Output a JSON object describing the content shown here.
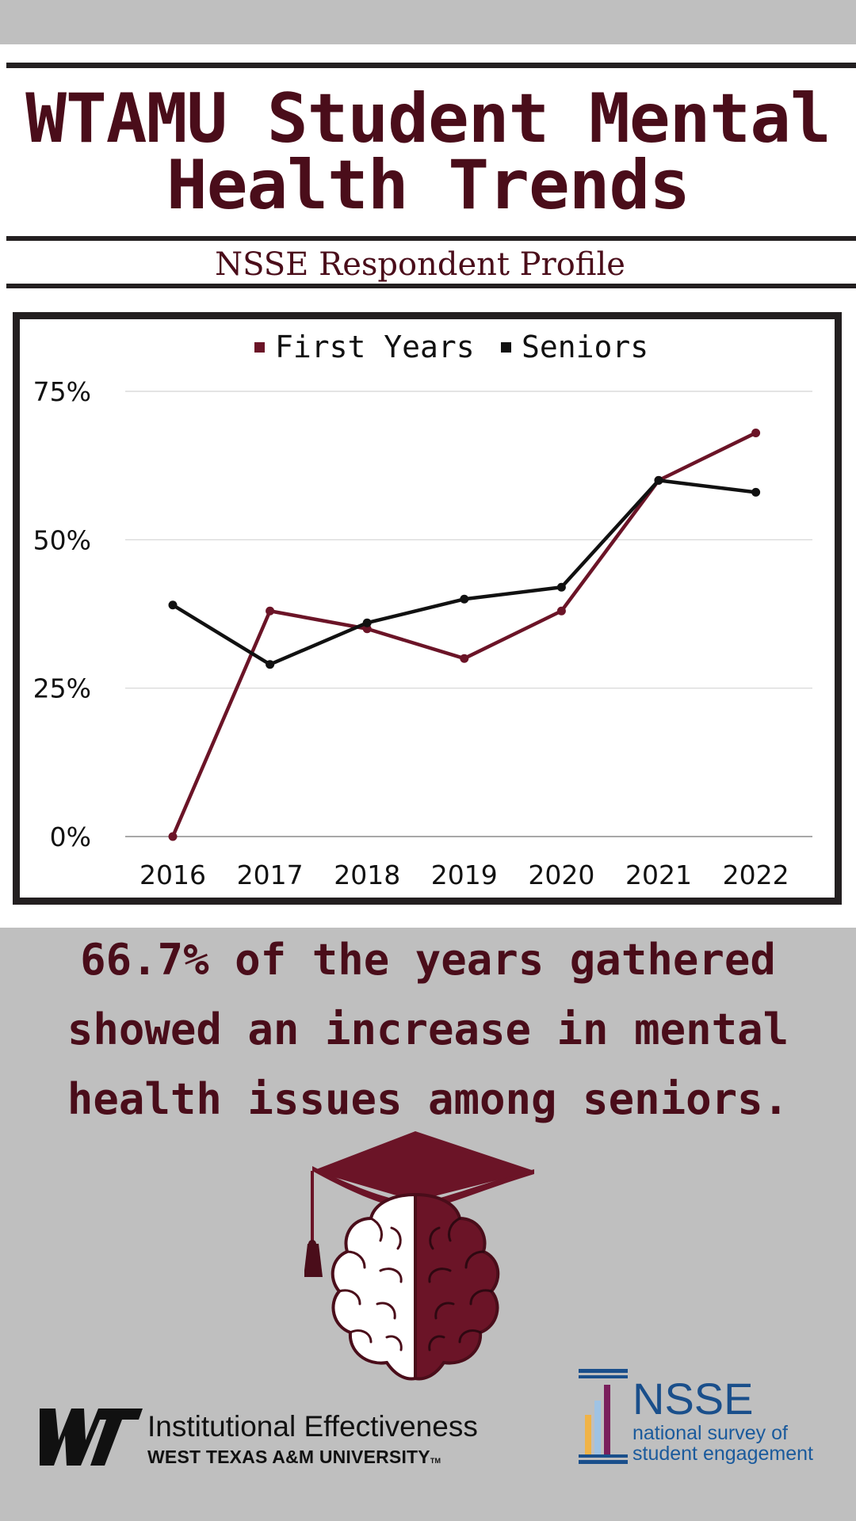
{
  "header": {
    "title_line1": "WTAMU Student Mental",
    "title_line2": "Health Trends",
    "subtitle": "NSSE Respondent Profile"
  },
  "colors": {
    "maroon": "#6b1427",
    "dark_maroon": "#4a0d1a",
    "black": "#111111",
    "panel_gray": "#bfbfbf",
    "nsse_blue": "#1a4f8b"
  },
  "chart_data": {
    "type": "line",
    "categories": [
      "2016",
      "2017",
      "2018",
      "2019",
      "2020",
      "2021",
      "2022"
    ],
    "series": [
      {
        "name": "First Years",
        "color": "#6b1427",
        "values": [
          0,
          38,
          35,
          30,
          38,
          60,
          68
        ]
      },
      {
        "name": "Seniors",
        "color": "#111111",
        "values": [
          39,
          29,
          36,
          40,
          42,
          60,
          58
        ]
      }
    ],
    "yticks": [
      "0%",
      "25%",
      "50%",
      "75%"
    ],
    "ylim": [
      0,
      75
    ],
    "grid": true,
    "legend_position": "top-center"
  },
  "caption": {
    "line1": "66.7% of the years gathered",
    "line2": "showed an increase in mental",
    "line3": "health issues among seniors."
  },
  "footer": {
    "wt_logo_text": "WT",
    "ie_name": "Institutional Effectiveness",
    "ie_university": "WEST TEXAS A&M UNIVERSITY",
    "ie_tm": "TM",
    "nsse_abbr": "NSSE",
    "nsse_line1": "national survey of",
    "nsse_line2": "student engagement"
  },
  "icons": [
    "graduation-cap-icon",
    "brain-icon",
    "nsse-pillar-icon"
  ]
}
